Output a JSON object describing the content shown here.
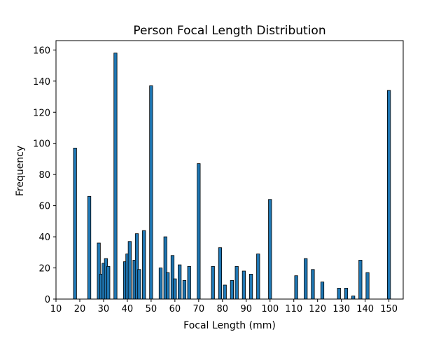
{
  "chart_data": {
    "type": "bar",
    "title": "Person Focal Length Distribution",
    "xlabel": "Focal Length (mm)",
    "ylabel": "Frequency",
    "xlim": [
      10,
      156
    ],
    "ylim": [
      0,
      166
    ],
    "xticks": [
      10,
      20,
      30,
      40,
      50,
      60,
      70,
      80,
      90,
      100,
      110,
      120,
      130,
      140,
      150
    ],
    "yticks": [
      0,
      20,
      40,
      60,
      80,
      100,
      120,
      140,
      160
    ],
    "bar_width": 1.3,
    "grid": false,
    "legend": "none",
    "bar_color": "#1f77b4",
    "edge_color": "#000000",
    "x": [
      18,
      24,
      28,
      29,
      30,
      31,
      32,
      35,
      39,
      40,
      41,
      43,
      44,
      45,
      47,
      50,
      54,
      56,
      57,
      59,
      60,
      62,
      64,
      66,
      70,
      76,
      79,
      81,
      84,
      86,
      89,
      92,
      95,
      100,
      111,
      115,
      118,
      122,
      129,
      132,
      135,
      138,
      141,
      150
    ],
    "values": [
      97,
      66,
      36,
      16,
      23,
      26,
      21,
      158,
      24,
      29,
      37,
      25,
      42,
      19,
      44,
      137,
      20,
      40,
      17,
      28,
      13,
      22,
      12,
      21,
      87,
      21,
      33,
      9,
      12,
      21,
      18,
      16,
      29,
      64,
      15,
      26,
      19,
      11,
      7,
      7,
      2,
      25,
      17,
      134
    ]
  }
}
